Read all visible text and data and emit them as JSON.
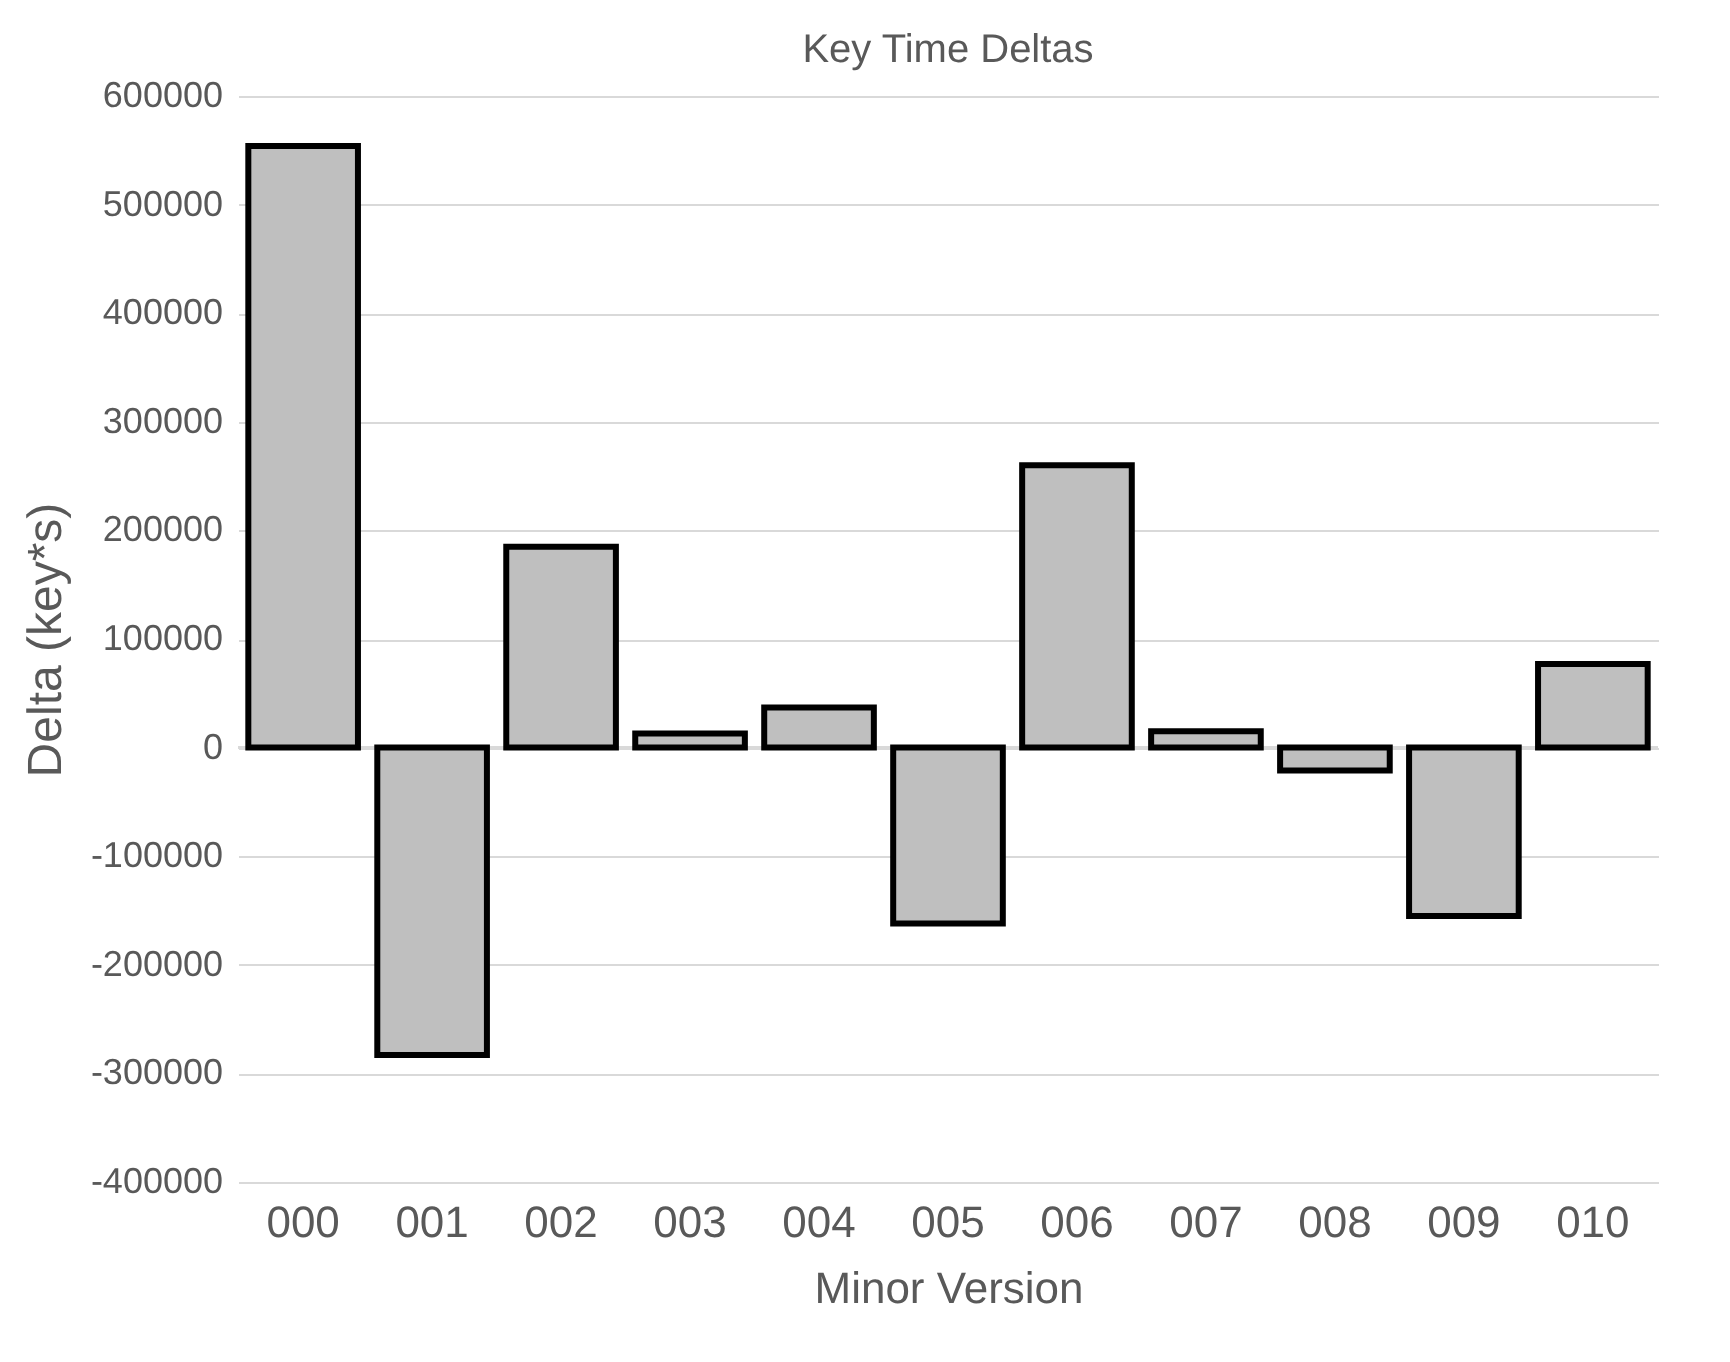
{
  "chart_data": {
    "type": "bar",
    "title": "Key Time Deltas",
    "xlabel": "Minor Version",
    "ylabel": "Delta (key*s)",
    "categories": [
      "000",
      "001",
      "002",
      "003",
      "004",
      "005",
      "006",
      "007",
      "008",
      "009",
      "010"
    ],
    "values": [
      554000,
      -283000,
      185000,
      13000,
      37000,
      -162000,
      260000,
      15000,
      -21000,
      -155000,
      77000
    ],
    "color": "#bfbfbf",
    "ylim": [
      -400000,
      600000
    ],
    "yticks": [
      -400000,
      -300000,
      -200000,
      -100000,
      0,
      100000,
      200000,
      300000,
      400000,
      500000,
      600000
    ],
    "grid": "y"
  }
}
